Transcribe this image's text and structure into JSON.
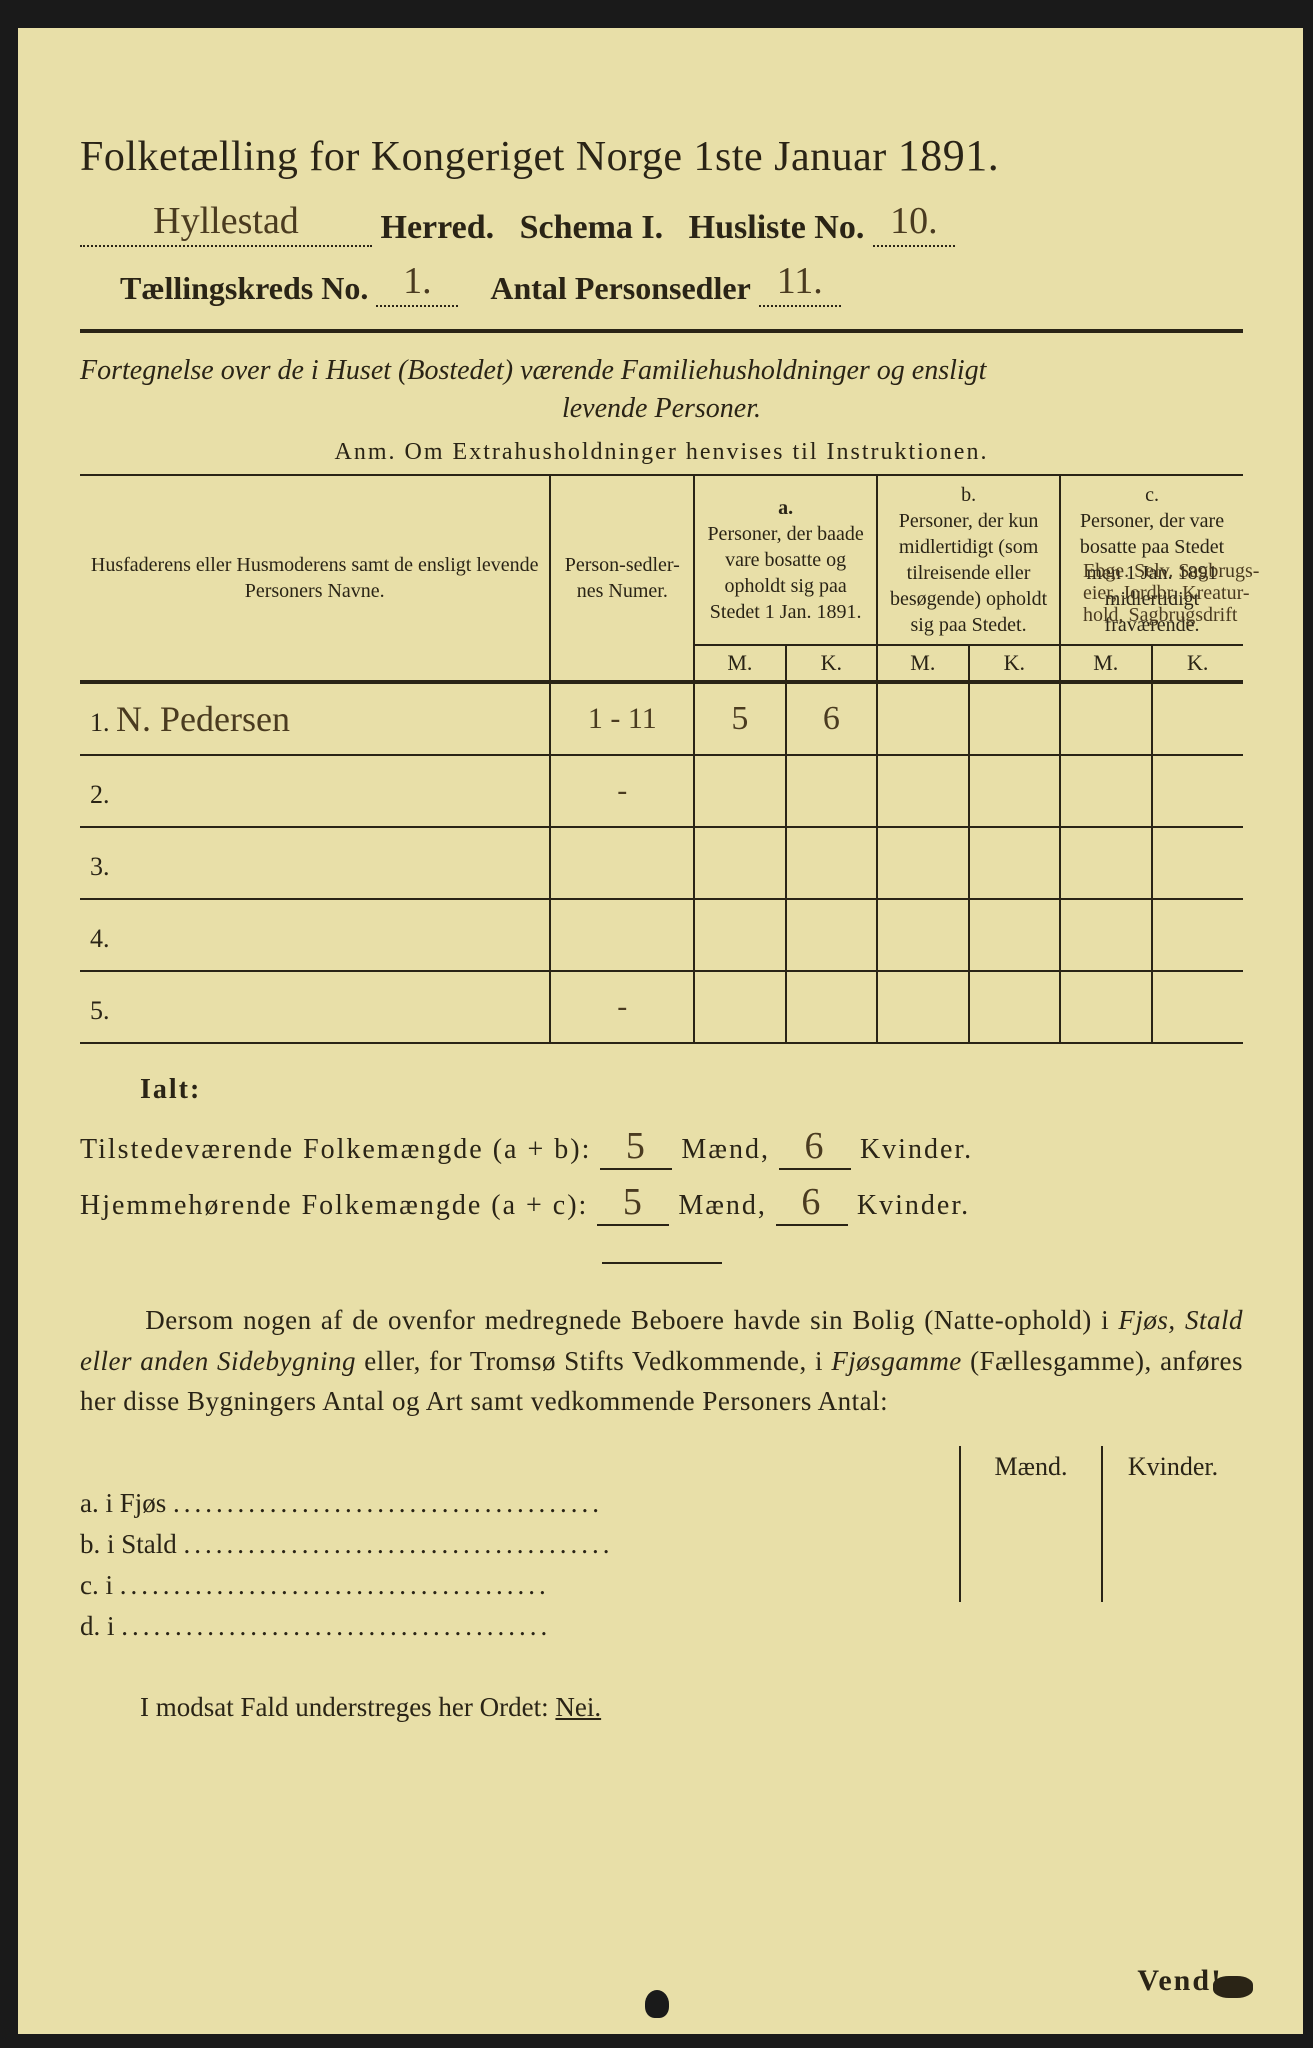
{
  "header": {
    "title_pre": "Folketælling for Kongeriget Norge 1ste Januar",
    "year": "1891.",
    "herred_value": "Hyllestad",
    "herred_label": "Herred.",
    "schema_label": "Schema I.",
    "husliste_label": "Husliste No.",
    "husliste_value": "10.",
    "kreds_label": "Tællingskreds No.",
    "kreds_value": "1.",
    "antal_label": "Antal Personsedler",
    "antal_value": "11."
  },
  "subtitle": {
    "line1": "Fortegnelse over de i Huset (Bostedet) værende Familiehusholdninger og ensligt",
    "line2": "levende Personer.",
    "anm": "Anm.  Om Extrahusholdninger henvises til Instruktionen."
  },
  "table": {
    "col_name": "Husfaderens eller Husmoderens samt de ensligt levende Personers Navne.",
    "col_num": "Person-sedler-nes Numer.",
    "col_a_head": "a.",
    "col_a": "Personer, der baade vare bosatte og opholdt sig paa Stedet 1 Jan. 1891.",
    "col_b_head": "b.",
    "col_b": "Personer, der kun midlertidigt (som tilreisende eller besøgende) opholdt sig paa Stedet.",
    "col_c_head": "c.",
    "col_c": "Personer, der vare bosatte paa Stedet men 1 Jan. 1891 midlertidigt fraværende.",
    "mk_m": "M.",
    "mk_k": "K.",
    "rows": [
      {
        "n": "1.",
        "name": "N. Pedersen",
        "num": "1 - 11",
        "am": "5",
        "ak": "6",
        "bm": "",
        "bk": "",
        "cm": "",
        "ck": "",
        "note": "Ebge. Selv. Sagbrugs-\neier, Jordbr. Kreatur-\nhold, Sagbrugsdrift"
      },
      {
        "n": "2.",
        "name": "",
        "num": "-",
        "am": "",
        "ak": "",
        "bm": "",
        "bk": "",
        "cm": "",
        "ck": "",
        "note": ""
      },
      {
        "n": "3.",
        "name": "",
        "num": "",
        "am": "",
        "ak": "",
        "bm": "",
        "bk": "",
        "cm": "",
        "ck": "",
        "note": ""
      },
      {
        "n": "4.",
        "name": "",
        "num": "",
        "am": "",
        "ak": "",
        "bm": "",
        "bk": "",
        "cm": "",
        "ck": "",
        "note": ""
      },
      {
        "n": "5.",
        "name": "",
        "num": "-",
        "am": "",
        "ak": "",
        "bm": "",
        "bk": "",
        "cm": "",
        "ck": "",
        "note": ""
      }
    ]
  },
  "ialt": {
    "title": "Ialt:",
    "row1_label": "Tilstedeværende Folkemængde (a + b):",
    "row1_m": "5",
    "row1_k": "6",
    "row2_label": "Hjemmehørende Folkemængde (a + c):",
    "row2_m": "5",
    "row2_k": "6",
    "maend": "Mænd,",
    "kvinder": "Kvinder."
  },
  "paragraph": {
    "text1": "Dersom nogen af de ovenfor medregnede Beboere havde sin Bolig (Natte-ophold) i ",
    "em1": "Fjøs, Stald eller anden Sidebygning",
    "text2": " eller, for Tromsø Stifts Vedkommende, i ",
    "em2": "Fjøsgamme",
    "text3": " (Fællesgamme), anføres her disse Bygningers Antal og Art samt vedkommende Personers Antal:"
  },
  "sidebuildings": {
    "maend": "Mænd.",
    "kvinder": "Kvinder.",
    "rows": [
      {
        "label": "a.  i      Fjøs"
      },
      {
        "label": "b.  i      Stald"
      },
      {
        "label": "c.  i"
      },
      {
        "label": "d.  i"
      }
    ]
  },
  "footer": {
    "line": "I modsat Fald understreges her Ordet: ",
    "nei": "Nei.",
    "vend": "Vend!"
  },
  "colors": {
    "paper": "#e8dfa8",
    "ink": "#2a2416",
    "handwriting": "#4a3b20",
    "background": "#1a1a1a"
  }
}
